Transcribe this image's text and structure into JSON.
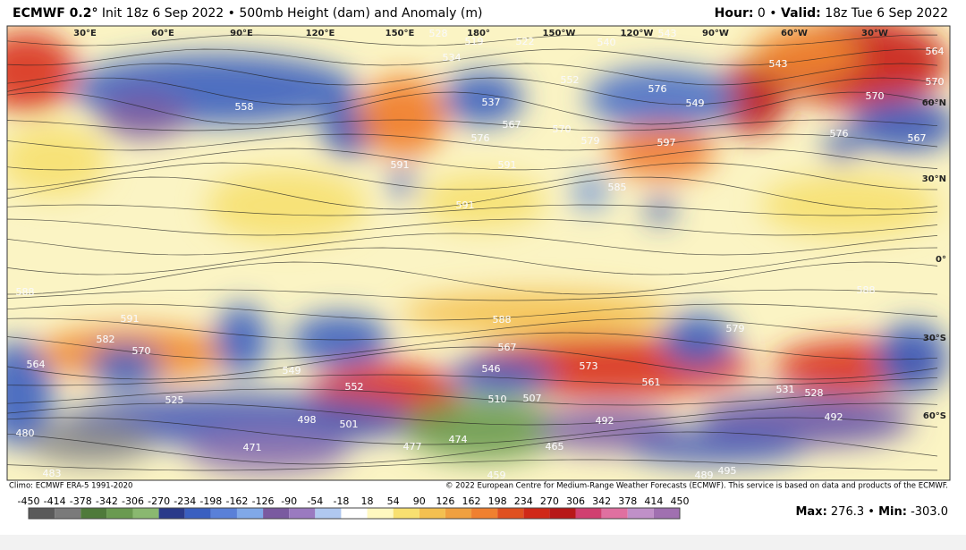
{
  "header": {
    "model": "ECMWF 0.2°",
    "init": "Init 18z 6 Sep 2022 • 500mb Height (dam) and Anomaly (m)",
    "hour_label": "Hour:",
    "hour": "0 •",
    "valid_label": "Valid:",
    "valid": "18z Tue 6 Sep 2022"
  },
  "map": {
    "longitude_labels": [
      "30°E",
      "60°E",
      "90°E",
      "120°E",
      "150°E",
      "180°",
      "150°W",
      "120°W",
      "90°W",
      "60°W",
      "30°W"
    ],
    "latitude_labels": [
      "60°N",
      "30°N",
      "0°",
      "30°S",
      "60°S"
    ],
    "contour_labels": [
      "528",
      "534",
      "519",
      "522",
      "540",
      "543",
      "564",
      "570",
      "543",
      "570",
      "552",
      "576",
      "549",
      "537",
      "567",
      "576",
      "570",
      "579",
      "558",
      "591",
      "591",
      "591",
      "597",
      "585",
      "567",
      "576",
      "588",
      "591",
      "582",
      "570",
      "564",
      "573",
      "561",
      "552",
      "549",
      "510",
      "507",
      "492",
      "498",
      "501",
      "477",
      "471",
      "465",
      "474",
      "528",
      "531",
      "492",
      "588",
      "579",
      "567",
      "588",
      "546",
      "525",
      "480",
      "483",
      "495",
      "489",
      "459"
    ]
  },
  "footer": {
    "climo": "Climo: ECMWF ERA-5 1991-2020",
    "copyright": "© 2022 European Centre for Medium-Range Weather Forecasts (ECMWF). This service is based on data and products of the ECMWF."
  },
  "legend": {
    "ticks": [
      -450,
      -414,
      -378,
      -342,
      -306,
      -270,
      -234,
      -198,
      -162,
      -126,
      -90,
      -54,
      -18,
      18,
      54,
      90,
      126,
      162,
      198,
      234,
      270,
      306,
      342,
      378,
      414,
      450
    ],
    "max_label": "Max:",
    "max": "276.3",
    "separator": "•",
    "min_label": "Min:",
    "min": "-303.0"
  }
}
